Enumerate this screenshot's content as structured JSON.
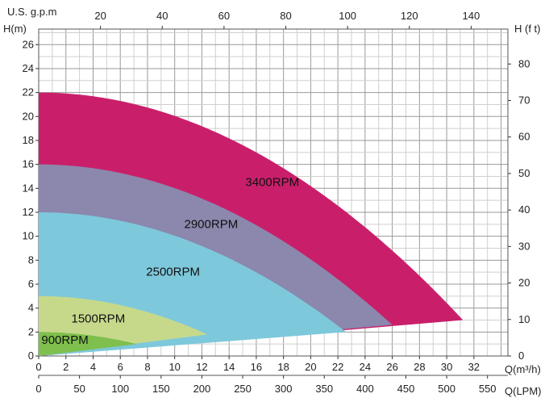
{
  "chart_data": {
    "type": "area",
    "title": "",
    "grid": true,
    "axes": {
      "left": {
        "label": "H(m)",
        "ticks": [
          0,
          2,
          4,
          6,
          8,
          10,
          12,
          14,
          16,
          18,
          20,
          22,
          24,
          26
        ],
        "range": [
          0,
          27.3
        ]
      },
      "right": {
        "label": "H (f t)",
        "ticks": [
          0,
          10,
          20,
          30,
          40,
          50,
          60,
          70,
          80
        ]
      },
      "bottom_primary": {
        "label": "Q(m³/h)",
        "ticks": [
          0,
          2,
          4,
          6,
          8,
          10,
          12,
          14,
          16,
          18,
          20,
          22,
          24,
          26,
          28,
          30,
          32
        ],
        "range": [
          0,
          34.5
        ]
      },
      "bottom_secondary": {
        "label": "Q(LPM)",
        "ticks": [
          0,
          50,
          100,
          150,
          200,
          250,
          300,
          350,
          400,
          450,
          500,
          550
        ]
      },
      "top": {
        "label": "U.S. g.p.m",
        "ticks": [
          20,
          40,
          60,
          80,
          100,
          120,
          140
        ]
      }
    },
    "series": [
      {
        "name": "3400RPM",
        "color": "#c91f6b",
        "q_max": 31.2,
        "h_shutoff": 22,
        "h_min": 3
      },
      {
        "name": "2900RPM",
        "color": "#8b87ad",
        "q_max": 26.0,
        "h_shutoff": 16,
        "h_min": 2.6
      },
      {
        "name": "2500RPM",
        "color": "#7ec8dc",
        "q_max": 22.6,
        "h_shutoff": 12,
        "h_min": 2
      },
      {
        "name": "1500RPM",
        "color": "#c6d98b",
        "q_max": 12.4,
        "h_shutoff": 5,
        "h_min": 1.8
      },
      {
        "name": "900RPM",
        "color": "#7fbf4d",
        "q_max": 7.2,
        "h_shutoff": 2,
        "h_min": 1
      }
    ]
  }
}
